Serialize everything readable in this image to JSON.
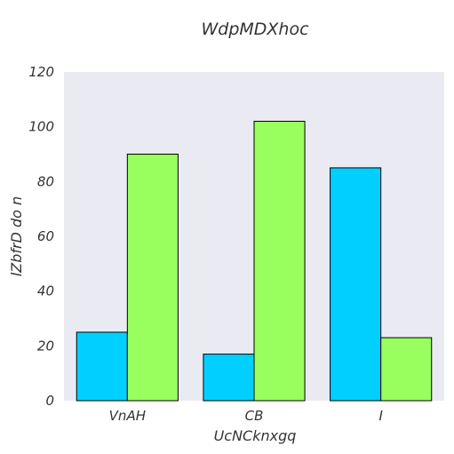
{
  "chart_data": {
    "type": "bar",
    "title": "WdpMDXhoc",
    "xlabel": "UcNCknxgq",
    "ylabel": "lZbfrD do n",
    "categories": [
      "VnAH",
      "CB",
      "I"
    ],
    "series": [
      {
        "values": [
          25,
          17,
          85
        ],
        "color": "#00cfff"
      },
      {
        "values": [
          90,
          102,
          23
        ],
        "color": "#99ff5f"
      }
    ],
    "ylim": [
      0,
      120
    ],
    "yticks": [
      0,
      20,
      40,
      60,
      80,
      100,
      120
    ],
    "grid": false,
    "legend": "none"
  }
}
